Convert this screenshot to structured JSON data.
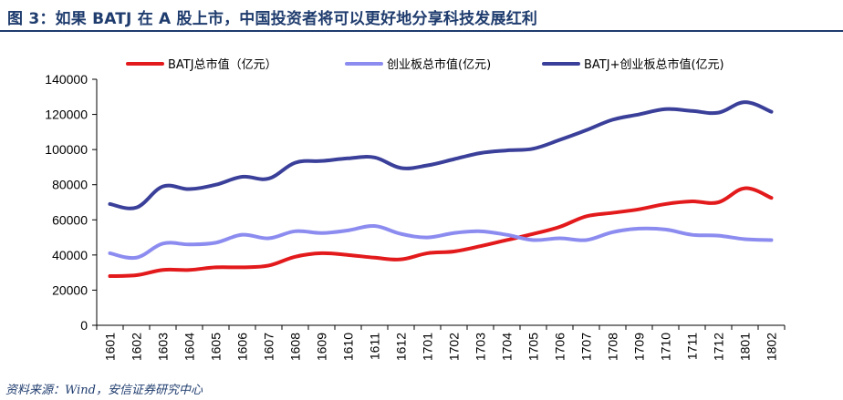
{
  "figure": {
    "title": "图 3：如果 BATJ 在 A 股上市，中国投资者将可以更好地分享科技发展红利",
    "source": "资料来源：Wind，安信证券研究中心"
  },
  "chart_data": {
    "type": "line",
    "x": [
      "1601",
      "1602",
      "1603",
      "1604",
      "1605",
      "1606",
      "1607",
      "1608",
      "1609",
      "1610",
      "1611",
      "1612",
      "1701",
      "1702",
      "1703",
      "1704",
      "1705",
      "1706",
      "1707",
      "1708",
      "1709",
      "1710",
      "1711",
      "1712",
      "1801",
      "1802"
    ],
    "ylim": [
      0,
      140000
    ],
    "yticks": [
      0,
      20000,
      40000,
      60000,
      80000,
      100000,
      120000,
      140000
    ],
    "ytick_labels": [
      "0",
      "20000",
      "40000",
      "60000",
      "80000",
      "100000",
      "120000",
      "140000"
    ],
    "grid": false,
    "legend_position": "top",
    "series": [
      {
        "name": "BATJ总市值（亿元）",
        "color": "#e31a1c",
        "values": [
          28000,
          28500,
          31500,
          31500,
          33000,
          33000,
          34000,
          39000,
          41000,
          40000,
          38500,
          37500,
          41000,
          42000,
          45000,
          48500,
          52000,
          56000,
          62000,
          64000,
          66000,
          69000,
          70500,
          70000,
          78000,
          72500
        ]
      },
      {
        "name": "创业板总市值(亿元)",
        "color": "#8c8cf0",
        "values": [
          41000,
          38500,
          46500,
          46000,
          47000,
          51500,
          49500,
          53500,
          52500,
          54000,
          56500,
          52000,
          50000,
          52500,
          53500,
          51500,
          48500,
          49500,
          48500,
          53000,
          55000,
          54500,
          51500,
          51000,
          49000,
          48500
        ]
      },
      {
        "name": "BATJ+创业板总市值(亿元)",
        "color": "#3a3f99",
        "values": [
          69000,
          67000,
          79000,
          77500,
          80000,
          84500,
          83500,
          92500,
          93500,
          95000,
          95500,
          89500,
          91000,
          94500,
          98000,
          99500,
          100500,
          105500,
          111000,
          117000,
          120000,
          123000,
          122000,
          121000,
          127000,
          121500
        ]
      }
    ]
  }
}
